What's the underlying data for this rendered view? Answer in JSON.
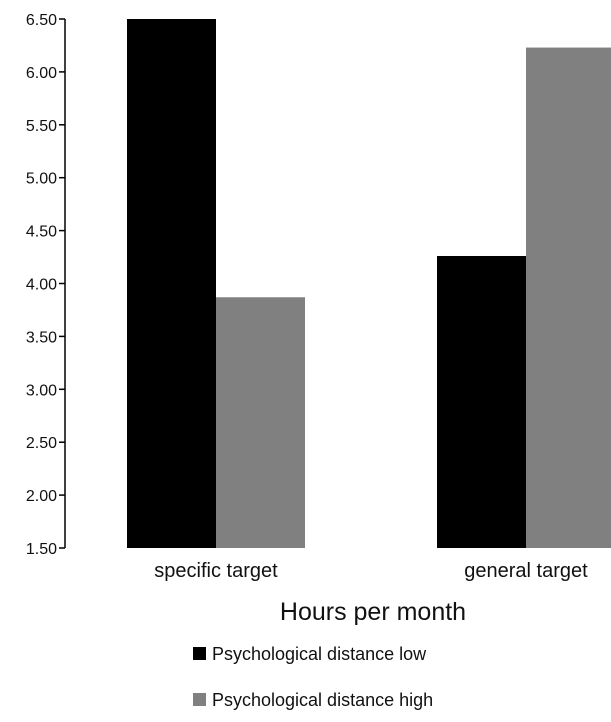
{
  "chart_data": {
    "type": "bar",
    "title": "",
    "xlabel": "Hours per month",
    "ylabel": "",
    "categories": [
      "specific target",
      "general target"
    ],
    "series": [
      {
        "name": "Psychological distance low",
        "values": [
          6.5,
          4.26
        ],
        "color": "#000000"
      },
      {
        "name": "Psychological distance high",
        "values": [
          3.87,
          6.23
        ],
        "color": "#808080"
      }
    ],
    "ylim": [
      1.5,
      6.5
    ],
    "yticks": [
      "6.50",
      "6.00",
      "5.50",
      "5.00",
      "4.50",
      "4.00",
      "3.50",
      "3.00",
      "2.50",
      "2.00",
      "1.50"
    ],
    "grid": false,
    "legend_position": "bottom"
  }
}
